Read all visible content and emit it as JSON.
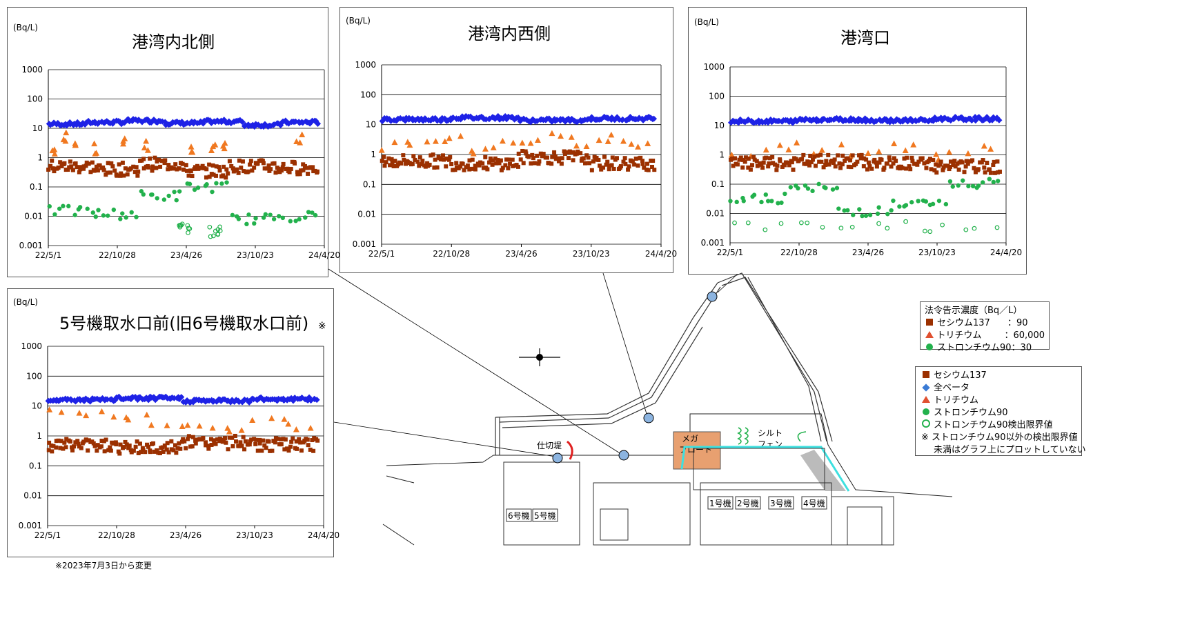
{
  "colors": {
    "cs": "#9B3000",
    "beta": "#1E22E6",
    "tri": "#F07820",
    "sr": "#22B14C",
    "grid": "#000000",
    "frame": "#555555",
    "mega": "#E8A070",
    "cyan": "#3DE0E0",
    "marker": "#8CB4E0"
  },
  "footnote": "※2023年7月3日から変更",
  "legend_limits": {
    "title": "法令告示濃度（Bq／L）",
    "rows": [
      {
        "icon": "cs-square",
        "label": "セシウム137",
        "value": "：90"
      },
      {
        "icon": "tri-triangle",
        "label": "トリチウム",
        "value": "：60,000"
      },
      {
        "icon": "sr-circle",
        "label": "ストロンチウム90：30",
        "value": ""
      }
    ]
  },
  "legend_series": {
    "rows": [
      {
        "icon": "cs-square",
        "label": "セシウム137"
      },
      {
        "icon": "beta-diamond",
        "label": "全ベータ"
      },
      {
        "icon": "tri-triangle",
        "label": "トリチウム"
      },
      {
        "icon": "sr-circle",
        "label": "ストロンチウム90"
      },
      {
        "icon": "sr-ring",
        "label": "ストロンチウム90検出限界値"
      }
    ],
    "note1": "※ ストロンチウム90以外の検出限界値",
    "note2": "未満はグラフ上にプロットしていない"
  },
  "map": {
    "labels": {
      "partition": "仕切堤",
      "mega": "メガ",
      "float": "フロート",
      "silt1": "シルト",
      "silt2": "フェン",
      "u6": "6号機",
      "u5": "5号機",
      "u1": "1号機",
      "u2": "2号機",
      "u3": "3号機",
      "u4": "4号機"
    }
  },
  "chart_data": [
    {
      "type": "scatter",
      "title": "港湾内北側",
      "unit": "(Bq/L)",
      "yscale": "log",
      "ylim": [
        0.001,
        1000
      ],
      "yticks": [
        "1000",
        "100",
        "10",
        "1",
        "0.1",
        "0.01",
        "0.001"
      ],
      "xticks": [
        "22/5/1",
        "22/10/28",
        "23/4/26",
        "23/10/23",
        "24/4/20"
      ],
      "series": [
        {
          "name": "全ベータ",
          "key": "beta",
          "y": [
            14,
            16,
            18,
            15,
            17,
            13,
            16
          ]
        },
        {
          "name": "トリチウム",
          "key": "tri",
          "y": [
            1.5,
            5,
            3,
            2,
            4,
            2.5,
            2,
            2,
            3,
            4
          ],
          "x": [
            "22/5/10",
            "22/6/15",
            "22/7/20",
            "22/9/1",
            "22/11/10",
            "23/1/15",
            "23/5/10",
            "23/7/1",
            "23/8/10",
            "24/2/15"
          ]
        },
        {
          "name": "セシウム137",
          "key": "cs",
          "y": [
            0.5,
            0.4,
            0.6,
            0.35,
            0.5,
            0.45
          ]
        },
        {
          "name": "ストロンチウム90",
          "key": "sr",
          "y": [
            0.015,
            0.012,
            0.05,
            0.1,
            0.008,
            0.01
          ]
        },
        {
          "name": "ストロンチウム90検出限界値",
          "key": "srl",
          "y": [
            0.004,
            0.003
          ],
          "x": [
            "23/4/20",
            "23/7/10"
          ]
        }
      ]
    },
    {
      "type": "scatter",
      "title": "港湾内西側",
      "unit": "(Bq/L)",
      "yscale": "log",
      "ylim": [
        0.001,
        1000
      ],
      "yticks": [
        "1000",
        "100",
        "10",
        "1",
        "0.1",
        "0.01",
        "0.001"
      ],
      "xticks": [
        "22/5/1",
        "22/10/28",
        "23/4/26",
        "23/10/23",
        "24/4/20"
      ],
      "series": [
        {
          "name": "全ベータ",
          "key": "beta",
          "y": [
            15,
            17,
            14,
            16
          ]
        },
        {
          "name": "トリチウム",
          "key": "tri",
          "y": [
            2,
            3,
            4,
            1.5,
            2,
            3,
            5,
            2,
            3,
            2
          ]
        },
        {
          "name": "セシウム137",
          "key": "cs",
          "y": [
            0.6,
            0.5,
            0.8,
            0.5
          ]
        }
      ]
    },
    {
      "type": "scatter",
      "title": "港湾口",
      "unit": "(Bq/L)",
      "yscale": "log",
      "ylim": [
        0.001,
        1000
      ],
      "yticks": [
        "1000",
        "100",
        "10",
        "1",
        "0.1",
        "0.01",
        "0.001"
      ],
      "xticks": [
        "22/5/1",
        "22/10/28",
        "23/4/26",
        "23/10/23",
        "24/4/20"
      ],
      "series": [
        {
          "name": "全ベータ",
          "key": "beta",
          "y": [
            14,
            16,
            15,
            17
          ]
        },
        {
          "name": "トリチウム",
          "key": "tri",
          "y": [
            1,
            2,
            1.5,
            1,
            2,
            1,
            1.5
          ]
        },
        {
          "name": "セシウム137",
          "key": "cs",
          "y": [
            0.5,
            0.6,
            0.5,
            0.4
          ]
        },
        {
          "name": "ストロンチウム90",
          "key": "sr",
          "y": [
            0.03,
            0.07,
            0.012,
            0.02,
            0.1
          ]
        },
        {
          "name": "ストロンチウム90検出限界値",
          "key": "srl",
          "y": [
            0.004,
            0.0045,
            0.0035
          ]
        }
      ]
    },
    {
      "type": "scatter",
      "title": "5号機取水口前(旧6号機取水口前)",
      "title_mark": "※",
      "unit": "(Bq/L)",
      "yscale": "log",
      "ylim": [
        0.001,
        1000
      ],
      "yticks": [
        "1000",
        "100",
        "10",
        "1",
        "0.1",
        "0.01",
        "0.001"
      ],
      "xticks": [
        "22/5/1",
        "22/10/28",
        "23/4/26",
        "23/10/23",
        "24/4/20"
      ],
      "series": [
        {
          "name": "全ベータ",
          "key": "beta",
          "y": [
            16,
            18,
            15,
            17
          ]
        },
        {
          "name": "トリチウム",
          "key": "tri",
          "y": [
            7,
            5,
            4,
            3,
            2,
            2,
            3,
            2
          ]
        },
        {
          "name": "セシウム137",
          "key": "cs",
          "y": [
            0.5,
            0.4,
            0.6,
            0.5
          ]
        }
      ]
    }
  ]
}
